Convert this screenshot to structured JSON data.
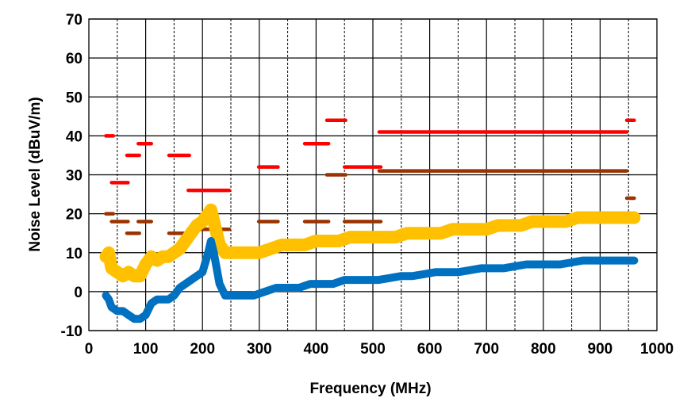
{
  "chart_data": {
    "type": "line",
    "title": "",
    "xlabel": "Frequency (MHz)",
    "ylabel": "Noise Level (dBuV/m)",
    "xlim": [
      0,
      1000
    ],
    "ylim": [
      -10,
      70
    ],
    "xticks": [
      0,
      100,
      200,
      300,
      400,
      500,
      600,
      700,
      800,
      900,
      1000
    ],
    "yticks": [
      -10,
      0,
      10,
      20,
      30,
      40,
      50,
      60,
      70
    ],
    "grid": {
      "horizontal": "solid every 10",
      "vertical_major": "solid every 100",
      "vertical_minor": "dashed every 50"
    },
    "series": [
      {
        "color": "#FFC000",
        "style": "noisy-line",
        "x": [
          30,
          35,
          40,
          50,
          60,
          70,
          80,
          90,
          100,
          110,
          120,
          130,
          140,
          150,
          160,
          170,
          180,
          190,
          200,
          210,
          215,
          220,
          230,
          240,
          250,
          260,
          280,
          300,
          320,
          340,
          360,
          380,
          400,
          420,
          440,
          460,
          480,
          500,
          520,
          540,
          560,
          580,
          600,
          620,
          640,
          660,
          680,
          700,
          720,
          740,
          760,
          780,
          800,
          820,
          840,
          860,
          880,
          900,
          920,
          940,
          960
        ],
        "y": [
          9,
          10,
          6,
          5,
          4,
          5,
          4,
          4,
          7,
          9,
          8,
          9,
          9,
          10,
          11,
          13,
          15,
          17,
          18,
          20,
          21,
          18,
          12,
          10,
          10,
          10,
          10,
          10,
          11,
          12,
          12,
          12,
          13,
          13,
          13,
          14,
          14,
          14,
          14,
          14,
          15,
          15,
          15,
          15,
          16,
          16,
          16,
          16,
          17,
          17,
          17,
          18,
          18,
          18,
          18,
          19,
          19,
          19,
          19,
          19,
          19
        ]
      },
      {
        "color": "#0070C0",
        "style": "noisy-line",
        "x": [
          30,
          35,
          40,
          50,
          60,
          70,
          80,
          90,
          100,
          110,
          120,
          130,
          140,
          150,
          160,
          170,
          180,
          190,
          200,
          210,
          215,
          220,
          230,
          240,
          250,
          270,
          290,
          310,
          330,
          350,
          370,
          390,
          410,
          430,
          450,
          470,
          490,
          510,
          530,
          550,
          570,
          590,
          610,
          630,
          650,
          670,
          690,
          710,
          730,
          750,
          770,
          790,
          810,
          830,
          850,
          870,
          890,
          910,
          930,
          960
        ],
        "y": [
          -1,
          -2,
          -4,
          -5,
          -5,
          -6,
          -7,
          -7,
          -6,
          -3,
          -2,
          -2,
          -2,
          -1,
          1,
          2,
          3,
          4,
          5,
          10,
          13,
          10,
          2,
          -1,
          -1,
          -1,
          -1,
          0,
          1,
          1,
          1,
          2,
          2,
          2,
          3,
          3,
          3,
          3,
          3.5,
          4,
          4,
          4.5,
          5,
          5,
          5,
          5.5,
          6,
          6,
          6,
          6.5,
          7,
          7,
          7,
          7,
          7.5,
          8,
          8,
          8,
          8,
          8
        ]
      }
    ],
    "limit_lines": [
      {
        "color": "#FF0000",
        "segments": [
          {
            "x": [
              30,
              43
            ],
            "y": 40
          },
          {
            "x": [
              40,
              69
            ],
            "y": 28
          },
          {
            "x": [
              67,
              89
            ],
            "y": 35
          },
          {
            "x": [
              87,
              110
            ],
            "y": 38
          },
          {
            "x": [
              141,
              177
            ],
            "y": 35
          },
          {
            "x": [
              175,
              247
            ],
            "y": 26
          },
          {
            "x": [
              299,
              333
            ],
            "y": 32
          },
          {
            "x": [
              380,
              422
            ],
            "y": 38
          },
          {
            "x": [
              419,
              452
            ],
            "y": 44
          },
          {
            "x": [
              450,
              514
            ],
            "y": 32
          },
          {
            "x": [
              511,
              947
            ],
            "y": 41
          },
          {
            "x": [
              947,
              960
            ],
            "y": 44
          }
        ]
      },
      {
        "color": "#993300",
        "segments": [
          {
            "x": [
              30,
              43
            ],
            "y": 20
          },
          {
            "x": [
              40,
              69
            ],
            "y": 18
          },
          {
            "x": [
              67,
              89
            ],
            "y": 15
          },
          {
            "x": [
              87,
              110
            ],
            "y": 18
          },
          {
            "x": [
              141,
              177
            ],
            "y": 15
          },
          {
            "x": [
              175,
              247
            ],
            "y": 16
          },
          {
            "x": [
              299,
              333
            ],
            "y": 18
          },
          {
            "x": [
              380,
              422
            ],
            "y": 18
          },
          {
            "x": [
              419,
              452
            ],
            "y": 30
          },
          {
            "x": [
              450,
              514
            ],
            "y": 18
          },
          {
            "x": [
              511,
              947
            ],
            "y": 31
          },
          {
            "x": [
              947,
              960
            ],
            "y": 24
          }
        ]
      }
    ]
  }
}
